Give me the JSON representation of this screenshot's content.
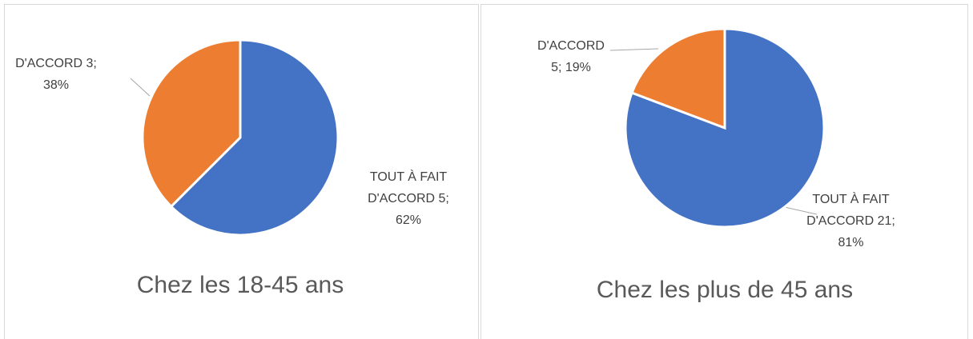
{
  "chart_data": [
    {
      "type": "pie",
      "title": "Chez les 18-45 ans",
      "categories": [
        "TOUT À FAIT D'ACCORD",
        "D'ACCORD"
      ],
      "values": [
        5,
        3
      ],
      "value_labels": [
        "5; 62%",
        "3; 38%"
      ],
      "colors": [
        "#4472c4",
        "#ed7d31"
      ]
    },
    {
      "type": "pie",
      "title": "Chez les plus de 45 ans",
      "categories": [
        "TOUT À FAIT D'ACCORD",
        "D'ACCORD"
      ],
      "values": [
        21,
        5
      ],
      "value_labels": [
        "21; 81%",
        "5; 19%"
      ],
      "colors": [
        "#4472c4",
        "#ed7d31"
      ]
    }
  ]
}
